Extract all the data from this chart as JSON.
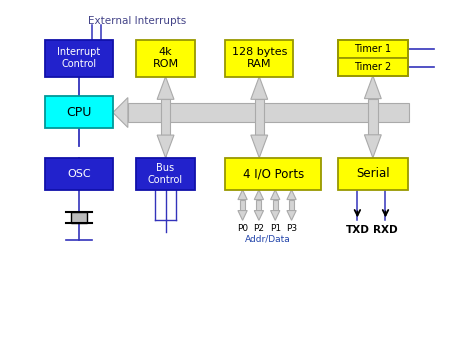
{
  "bg_color": "#ffffff",
  "box_dark_blue": "#2222CC",
  "box_cyan": "#00FFFF",
  "box_yellow": "#FFFF00",
  "box_border_blue": "#1111AA",
  "box_border_yellow": "#999900",
  "line_color": "#3333BB",
  "bus_color": "#CCCCCC",
  "bus_edge": "#999999",
  "text_white": "#FFFFFF",
  "text_black": "#000000",
  "text_label": "#336699",
  "title": "External Interrupts",
  "xlim": [
    0,
    10
  ],
  "ylim": [
    0,
    7.1
  ]
}
